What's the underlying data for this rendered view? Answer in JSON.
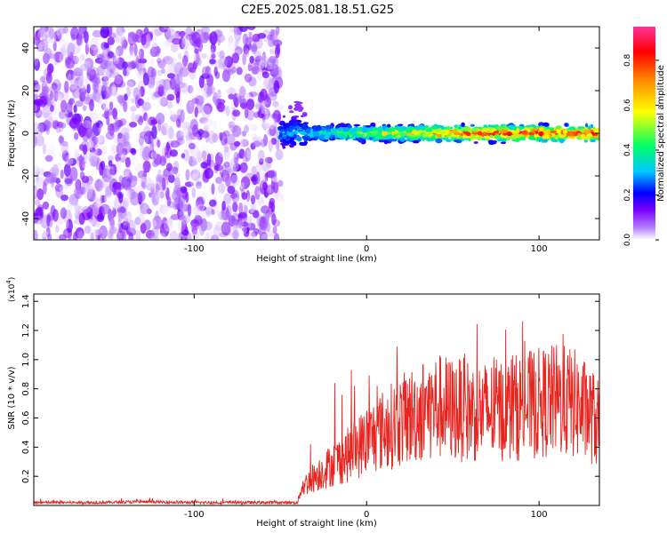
{
  "chart_data": [
    {
      "type": "heatmap",
      "title": "C2E5.2025.081.18.51.G25",
      "xlabel": "Height of straight line (km)",
      "ylabel": "Frequency (Hz)",
      "xlim": [
        -193,
        135
      ],
      "ylim": [
        -50,
        50
      ],
      "xticks": [
        -100,
        0,
        100
      ],
      "xtick_labels": [
        "-100",
        "0",
        "100"
      ],
      "yticks": [
        -40,
        -20,
        0,
        20,
        40
      ],
      "ytick_labels": [
        "-40",
        "-20",
        "0",
        "20",
        "40"
      ],
      "colorbar": {
        "label": "Normalized spectral amplitude",
        "range": [
          0,
          0.95
        ],
        "ticks": [
          0.0,
          0.2,
          0.4,
          0.6,
          0.8
        ],
        "tick_labels": [
          "0.0",
          "0.2",
          "0.4",
          "0.6",
          "0.8"
        ],
        "colors": [
          "#ffffff",
          "#7b00ff",
          "#0000ff",
          "#00c8ff",
          "#00ff66",
          "#ffff00",
          "#ff8800",
          "#ff0000",
          "#ff3399"
        ]
      },
      "regions": [
        {
          "x_range": [
            -193,
            -50
          ],
          "freq_range": [
            -50,
            50
          ],
          "amplitude": [
            0.0,
            0.15
          ],
          "pattern": "scattered noise"
        },
        {
          "x_range": [
            -50,
            135
          ],
          "freq_center": 0,
          "freq_halfwidth": 5,
          "amplitude": [
            0.1,
            0.95
          ],
          "pattern": "narrow band near 0 Hz"
        }
      ]
    },
    {
      "type": "line",
      "title": "",
      "xlabel": "Height of straight line (km)",
      "ylabel": "SNR (10 * v/v)",
      "y_multiplier": "(x10",
      "y_multiplier_exp": "4",
      "xlim": [
        -193,
        135
      ],
      "ylim": [
        0,
        1.45
      ],
      "xticks": [
        -100,
        0,
        100
      ],
      "xtick_labels": [
        "-100",
        "0",
        "100"
      ],
      "yticks": [
        0.2,
        0.4,
        0.6,
        0.8,
        1.0,
        1.2,
        1.4
      ],
      "ytick_labels": [
        "0.2",
        "0.4",
        "0.6",
        "0.8",
        "1.0",
        "1.2",
        "1.4"
      ],
      "line_color": "#e8241f",
      "series": [
        {
          "x": [
            -193,
            -160,
            -130,
            -100,
            -70,
            -40,
            -38,
            -30,
            -20,
            -10,
            0,
            10,
            20,
            30,
            40,
            50,
            60,
            70,
            80,
            90,
            100,
            110,
            120,
            130,
            135
          ],
          "y": [
            0.02,
            0.02,
            0.025,
            0.02,
            0.02,
            0.02,
            0.12,
            0.2,
            0.28,
            0.35,
            0.45,
            0.52,
            0.58,
            0.64,
            0.68,
            0.66,
            0.65,
            0.64,
            0.66,
            0.68,
            0.7,
            0.72,
            0.7,
            0.62,
            0.55
          ]
        }
      ]
    }
  ]
}
